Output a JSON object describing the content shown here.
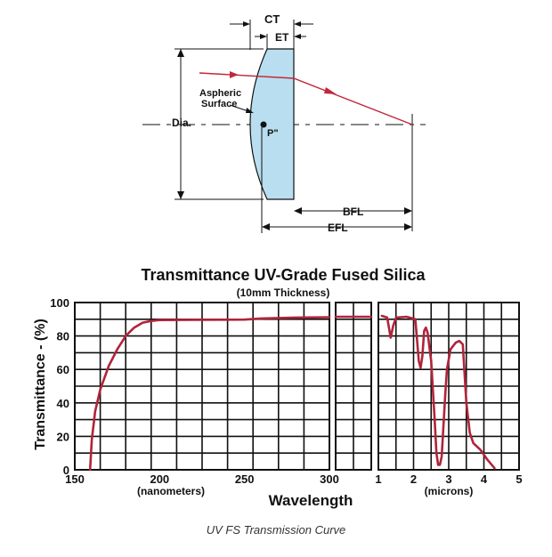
{
  "diagram": {
    "labels": {
      "ct": "CT",
      "et": "ET",
      "aspheric": "Aspheric",
      "surface": "Surface",
      "dia": "Dia.",
      "p": "P\"",
      "bfl": "BFL",
      "efl": "EFL"
    },
    "colors": {
      "lens_fill": "#b9def0",
      "ray": "#c0283a"
    }
  },
  "chart_data": {
    "type": "line",
    "title": "Transmittance UV-Grade Fused Silica",
    "subtitle": "(10mm Thickness)",
    "ylabel": "Transmittance - (%)",
    "xlabel": "Wavelength",
    "ylim": [
      0,
      100
    ],
    "yticks": [
      "0",
      "20",
      "40",
      "60",
      "80",
      "100"
    ],
    "grid": true,
    "line_color": "#b0243a",
    "panels": [
      {
        "unit_label": "(nanometers)",
        "xlim": [
          150,
          300
        ],
        "xticks": [
          "150",
          "200",
          "250",
          "300"
        ],
        "points": [
          [
            159,
            0
          ],
          [
            160,
            18
          ],
          [
            162,
            35
          ],
          [
            165,
            48
          ],
          [
            170,
            62
          ],
          [
            175,
            72
          ],
          [
            180,
            80
          ],
          [
            185,
            85
          ],
          [
            190,
            88
          ],
          [
            195,
            89
          ],
          [
            200,
            89.5
          ],
          [
            220,
            89.7
          ],
          [
            250,
            89.8
          ],
          [
            260,
            90.5
          ],
          [
            280,
            91
          ],
          [
            300,
            91.2
          ]
        ]
      },
      {
        "unit_label": "",
        "xlim": [
          300,
          320
        ],
        "xticks": [],
        "points": [
          [
            300,
            91.5
          ],
          [
            320,
            91.5
          ]
        ]
      },
      {
        "unit_label": "(microns)",
        "xlim": [
          1,
          5
        ],
        "xticks": [
          "1",
          "2",
          "3",
          "4",
          "5"
        ],
        "points": [
          [
            1.1,
            92
          ],
          [
            1.25,
            91
          ],
          [
            1.35,
            79
          ],
          [
            1.42,
            86
          ],
          [
            1.5,
            91
          ],
          [
            1.8,
            91.5
          ],
          [
            2.05,
            90
          ],
          [
            2.15,
            65
          ],
          [
            2.2,
            61
          ],
          [
            2.25,
            68
          ],
          [
            2.3,
            83
          ],
          [
            2.35,
            85
          ],
          [
            2.4,
            82
          ],
          [
            2.5,
            65
          ],
          [
            2.6,
            30
          ],
          [
            2.65,
            10
          ],
          [
            2.7,
            3
          ],
          [
            2.75,
            3
          ],
          [
            2.8,
            8
          ],
          [
            2.9,
            45
          ],
          [
            2.95,
            60
          ],
          [
            3.05,
            72
          ],
          [
            3.2,
            76
          ],
          [
            3.3,
            77
          ],
          [
            3.4,
            75
          ],
          [
            3.5,
            40
          ],
          [
            3.6,
            22
          ],
          [
            3.7,
            16
          ],
          [
            3.9,
            12
          ],
          [
            4.1,
            6
          ],
          [
            4.3,
            1
          ]
        ]
      }
    ]
  },
  "caption": "UV FS Transmission Curve"
}
